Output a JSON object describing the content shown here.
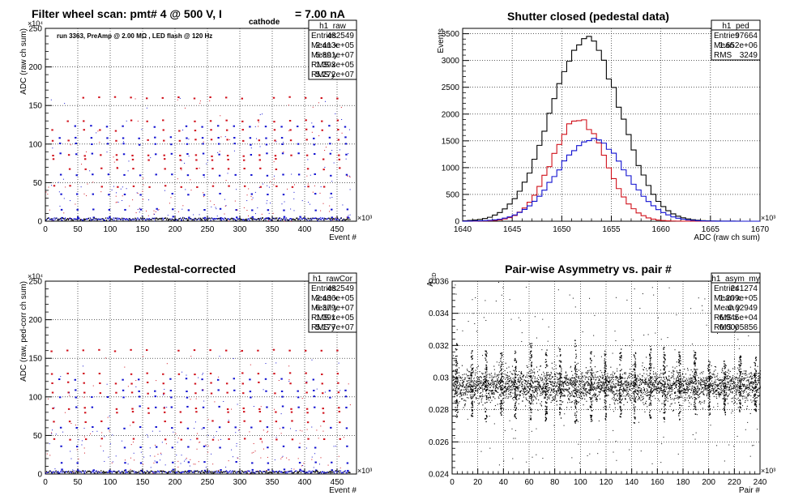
{
  "chart_data": [
    {
      "type": "scatter",
      "title": "Filter wheel scan: pmt#   4 @   500 V, I",
      "title_subscript": "cathode",
      "title_suffix": "= 7.00 nA",
      "annotation": "run 3363, PreAmp @ 2.00 MΩ , LED flash @  120 Hz",
      "xlabel": "Event #",
      "ylabel": "ADC (raw ch sum)",
      "x_exponent": "×10³",
      "y_exponent": "×10⁴",
      "xlim": [
        0,
        480
      ],
      "ylim": [
        0,
        250
      ],
      "x_ticks": [
        0,
        50,
        100,
        150,
        200,
        250,
        300,
        350,
        400,
        450
      ],
      "y_ticks": [
        0,
        50,
        100,
        150,
        200,
        250
      ],
      "red_levels": [
        160,
        130,
        118,
        105,
        85,
        80,
        68,
        45
      ],
      "blue_levels": [
        123,
        108,
        100,
        87,
        60,
        35,
        15,
        5
      ],
      "stats": {
        "name": "h1_raw",
        "rows": [
          {
            "label": "Entries",
            "value": "482549"
          },
          {
            "label": "Mean x",
            "value": "2.413e+05"
          },
          {
            "label": "Mean y",
            "value": "5.891e+07"
          },
          {
            "label": "RMS x",
            "value": "1.393e+05"
          },
          {
            "label": "RMS y",
            "value": "5.272e+07"
          }
        ]
      },
      "grid": true,
      "colors": {
        "red": "#d0101a",
        "blue": "#1010d0",
        "black": "#000000"
      }
    },
    {
      "type": "line",
      "title": "Shutter closed (pedestal data)",
      "xlabel": "ADC (raw ch sum)",
      "ylabel": "Events",
      "x_exponent": "×10³",
      "xlim": [
        1640,
        1670
      ],
      "ylim": [
        0,
        3600
      ],
      "x_ticks": [
        1640,
        1645,
        1650,
        1655,
        1660,
        1665,
        1670
      ],
      "y_ticks": [
        0,
        500,
        1000,
        1500,
        2000,
        2500,
        3000,
        3500
      ],
      "series": [
        {
          "color": "#000000",
          "center": 1652.4,
          "sigma": 3.5,
          "peak": 3400
        },
        {
          "color": "#d0101a",
          "center": 1651.7,
          "sigma": 2.7,
          "peak": 1900
        },
        {
          "color": "#1010d0",
          "center": 1653.0,
          "sigma": 3.4,
          "peak": 1550
        }
      ],
      "stats": {
        "name": "h1_ped",
        "rows": [
          {
            "label": "Entries",
            "value": "97664"
          },
          {
            "label": "Mean",
            "value": "1.652e+06"
          },
          {
            "label": "RMS",
            "value": "3249"
          }
        ]
      },
      "grid": true
    },
    {
      "type": "scatter",
      "title": "Pedestal-corrected",
      "xlabel": "Event #",
      "ylabel": "ADC (raw, ped-corr ch sum)",
      "x_exponent": "×10³",
      "y_exponent": "×10⁴",
      "xlim": [
        0,
        480
      ],
      "ylim": [
        0,
        250
      ],
      "x_ticks": [
        0,
        50,
        100,
        150,
        200,
        250,
        300,
        350,
        400,
        450
      ],
      "y_ticks": [
        0,
        50,
        100,
        150,
        200,
        250
      ],
      "red_levels": [
        160,
        130,
        118,
        105,
        85,
        80,
        68,
        45
      ],
      "blue_levels": [
        123,
        108,
        100,
        87,
        60,
        35,
        15,
        5
      ],
      "stats": {
        "name": "h1_rawCor",
        "rows": [
          {
            "label": "Entries",
            "value": "482549"
          },
          {
            "label": "Mean x",
            "value": "2.436e+05"
          },
          {
            "label": "Mean y",
            "value": "6.379e+07"
          },
          {
            "label": "RMS x",
            "value": "1.391e+05"
          },
          {
            "label": "RMS y",
            "value": "5.177e+07"
          }
        ]
      },
      "grid": true
    },
    {
      "type": "scatter",
      "title": "Pair-wise Asymmetry vs. pair #",
      "xlabel": "Pair #",
      "ylabel": "A",
      "ylabel_subscript": "LED",
      "x_exponent": "×10³",
      "xlim": [
        0,
        240
      ],
      "ylim": [
        0.024,
        0.036
      ],
      "x_ticks": [
        0,
        20,
        40,
        60,
        80,
        100,
        120,
        140,
        160,
        180,
        200,
        220,
        240
      ],
      "y_ticks": [
        0.024,
        0.026,
        0.028,
        0.03,
        0.032,
        0.034,
        0.036
      ],
      "band_center": 0.02949,
      "band_rms": 0.0005856,
      "spike_x": [
        3,
        15,
        26,
        38,
        49,
        61,
        73,
        84,
        96,
        108,
        119,
        131,
        142,
        154,
        165,
        177,
        189,
        200,
        212,
        224,
        236
      ],
      "spike_top": [
        0.0322,
        0.0318,
        0.0317,
        0.0316,
        0.0318,
        0.0322,
        0.0318,
        0.0319,
        0.0324,
        0.0318,
        0.0317,
        0.0318,
        0.0318,
        0.032,
        0.0321,
        0.0318,
        0.0316,
        0.0311,
        0.0312,
        0.0314,
        0.0313
      ],
      "spike_bottom": [
        0.0274,
        0.0276,
        0.0272,
        0.0276,
        0.0274,
        0.0274,
        0.0273,
        0.0275,
        0.0272,
        0.0273,
        0.0274,
        0.0275,
        0.0272,
        0.0275,
        0.0273,
        0.0273,
        0.0275,
        0.0277,
        0.0277,
        0.0279,
        0.0279
      ],
      "stats": {
        "name": "h1_asym_my",
        "rows": [
          {
            "label": "Entries",
            "value": "241274"
          },
          {
            "label": "Mean x",
            "value": "1.209e+05"
          },
          {
            "label": "Mean y",
            "value": "0.02949"
          },
          {
            "label": "RMS x",
            "value": "6.945e+04"
          },
          {
            "label": "RMS y",
            "value": "0.0005856"
          }
        ]
      },
      "grid": true
    }
  ]
}
